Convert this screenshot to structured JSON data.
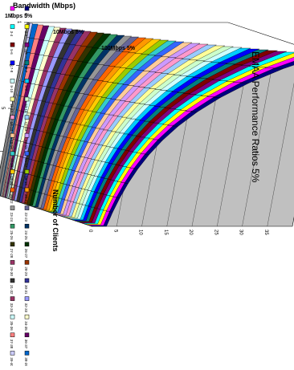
{
  "chart_data": {
    "type": "area",
    "title": "EMAA Performance Ratios 5%",
    "xlabel": "Number of Clients",
    "ylabel": "Bandwidth (Mbps)",
    "x_ticks": [
      "1",
      "3",
      "5",
      "7",
      "9"
    ],
    "y_ticks": [
      "1Mbps 5%",
      "10Mbps 5%",
      "100Mbps 5%"
    ],
    "z_ticks": [
      "0",
      "5",
      "10",
      "15",
      "20",
      "25",
      "30",
      "35"
    ],
    "z_range": [
      0,
      40
    ],
    "rotated": true,
    "categories": [
      "1Mbps 5%",
      "10Mbps 5%",
      "100Mbps 5%"
    ],
    "series": [
      {
        "name": "0-1",
        "color": "#000080",
        "values": [
          40,
          40,
          40
        ]
      },
      {
        "name": "1-2",
        "color": "#FF00FF",
        "values": [
          39,
          39,
          39
        ]
      },
      {
        "name": "2-3",
        "color": "#FFFF00",
        "values": [
          38,
          38,
          38
        ]
      },
      {
        "name": "3-4",
        "color": "#00FFFF",
        "values": [
          37,
          37,
          37
        ]
      },
      {
        "name": "4-5",
        "color": "#800080",
        "values": [
          36,
          36,
          36
        ]
      },
      {
        "name": "5-6",
        "color": "#800000",
        "values": [
          35,
          35,
          35
        ]
      },
      {
        "name": "6-7",
        "color": "#008080",
        "values": [
          34,
          34,
          34
        ]
      },
      {
        "name": "7-8",
        "color": "#0000FF",
        "values": [
          33,
          33,
          33
        ]
      },
      {
        "name": "8-9",
        "color": "#00CCFF",
        "values": [
          32,
          32,
          32
        ]
      },
      {
        "name": "9-10",
        "color": "#CCFFFF",
        "values": [
          31,
          31,
          31
        ]
      },
      {
        "name": "10-11",
        "color": "#CCFFCC",
        "values": [
          30,
          30,
          30
        ]
      },
      {
        "name": "11-12",
        "color": "#FFFF99",
        "values": [
          29,
          29,
          29
        ]
      },
      {
        "name": "12-13",
        "color": "#99CCFF",
        "values": [
          28,
          28,
          28
        ]
      },
      {
        "name": "13-14",
        "color": "#FF99CC",
        "values": [
          27,
          27,
          27
        ]
      },
      {
        "name": "14-15",
        "color": "#CC99FF",
        "values": [
          26,
          26,
          26
        ]
      },
      {
        "name": "15-16",
        "color": "#FFCC99",
        "values": [
          25,
          25,
          25
        ]
      },
      {
        "name": "16-17",
        "color": "#3366FF",
        "values": [
          24,
          24,
          24
        ]
      },
      {
        "name": "17-18",
        "color": "#33CCCC",
        "values": [
          23,
          23,
          23
        ]
      },
      {
        "name": "18-19",
        "color": "#99CC00",
        "values": [
          22,
          22,
          22
        ]
      },
      {
        "name": "19-20",
        "color": "#FFCC00",
        "values": [
          21,
          21,
          21
        ]
      },
      {
        "name": "20-21",
        "color": "#FF9900",
        "values": [
          20,
          20,
          20
        ]
      },
      {
        "name": "21-22",
        "color": "#FF6600",
        "values": [
          19,
          19,
          19
        ]
      },
      {
        "name": "22-23",
        "color": "#666699",
        "values": [
          18,
          18,
          18
        ]
      },
      {
        "name": "23-24",
        "color": "#969696",
        "values": [
          17,
          17,
          17
        ]
      },
      {
        "name": "24-25",
        "color": "#003366",
        "values": [
          16,
          16,
          16
        ]
      },
      {
        "name": "25-26",
        "color": "#339966",
        "values": [
          15,
          15,
          15
        ]
      },
      {
        "name": "26-27",
        "color": "#003300",
        "values": [
          14,
          14,
          14
        ]
      },
      {
        "name": "27-28",
        "color": "#333300",
        "values": [
          13,
          13,
          13
        ]
      },
      {
        "name": "28-29",
        "color": "#993300",
        "values": [
          12,
          12,
          12
        ]
      },
      {
        "name": "29-30",
        "color": "#993366",
        "values": [
          11,
          11,
          11
        ]
      },
      {
        "name": "30-31",
        "color": "#333399",
        "values": [
          10,
          10,
          10
        ]
      },
      {
        "name": "31-32",
        "color": "#333333",
        "values": [
          9,
          9,
          9
        ]
      },
      {
        "name": "32-33",
        "color": "#9999FF",
        "values": [
          8,
          8,
          8
        ]
      },
      {
        "name": "33-34",
        "color": "#993366",
        "values": [
          7,
          7,
          7
        ]
      },
      {
        "name": "34-35",
        "color": "#FFFFCC",
        "values": [
          6,
          6,
          6
        ]
      },
      {
        "name": "35-36",
        "color": "#CCFFFF",
        "values": [
          5,
          5,
          5
        ]
      },
      {
        "name": "36-37",
        "color": "#660066",
        "values": [
          4,
          4,
          4
        ]
      },
      {
        "name": "37-38",
        "color": "#FF8080",
        "values": [
          3,
          3,
          3
        ]
      },
      {
        "name": "38-39",
        "color": "#0066CC",
        "values": [
          2,
          2,
          2
        ]
      },
      {
        "name": "39-40",
        "color": "#CCCCFF",
        "values": [
          1,
          1,
          1
        ]
      }
    ],
    "legend_position": "bottom",
    "floor_color": "#808080",
    "wall_color": "#C0C0C0"
  }
}
